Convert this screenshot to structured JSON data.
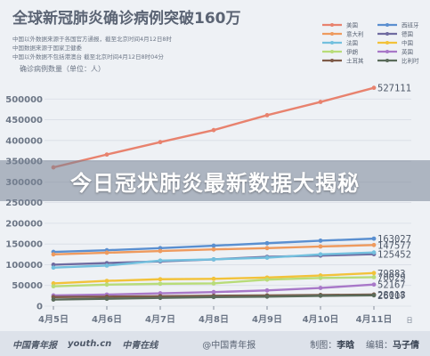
{
  "title": "全球新冠肺炎确诊病例突破160万",
  "notes": [
    "中国以外数据来源于各国官方通报，截至北京时间4月12日8时",
    "中国数据来源于国家卫健委",
    "中国以外数据不包括港澳台 截至北京时间4月12日8时04分"
  ],
  "banner": "今日冠状肺炎最新数据大揭秘",
  "footer": {
    "logo1": "中国青年报",
    "logo2": "youth.cn",
    "logo3": "中青在线",
    "source": "@中国青年报",
    "credits_label1": "制图：",
    "credits_name1": "李晗",
    "credits_label2": "编辑：",
    "credits_name2": "马子倩"
  },
  "colors": {
    "background": "#eef1f5",
    "grid": "#d8dde5",
    "axis_text": "#6b7585"
  },
  "chart_data": {
    "type": "line",
    "ylabel": "确诊病例数量（单位：人）",
    "xlabel": "日",
    "x": [
      "4月5日",
      "4月6日",
      "4月7日",
      "4月8日",
      "4月9日",
      "4月10日",
      "4月11日"
    ],
    "ylim": [
      0,
      550000
    ],
    "yticks": [
      0,
      50000,
      100000,
      150000,
      200000,
      250000,
      300000,
      350000,
      400000,
      450000,
      500000
    ],
    "legend_position": "top-right",
    "series": [
      {
        "name": "美国",
        "color": "#e8826e",
        "values": [
          335000,
          366000,
          396000,
          425000,
          461000,
          493000,
          527111
        ]
      },
      {
        "name": "西班牙",
        "color": "#5a8fd0",
        "values": [
          131000,
          135000,
          140000,
          146000,
          152000,
          158000,
          163027
        ]
      },
      {
        "name": "意大利",
        "color": "#ee9a5e",
        "values": [
          125000,
          129000,
          133000,
          137000,
          140000,
          144000,
          147577
        ]
      },
      {
        "name": "德国",
        "color": "#6f6ba0",
        "values": [
          100000,
          104000,
          108000,
          113000,
          119000,
          122000,
          125452
        ]
      },
      {
        "name": "法国",
        "color": "#73c0de",
        "values": [
          93000,
          98000,
          110000,
          113000,
          117000,
          125000,
          129654
        ]
      },
      {
        "name": "中国",
        "color": "#f2c23a",
        "values": [
          55000,
          61000,
          65000,
          66000,
          69000,
          74000,
          79883
        ]
      },
      {
        "name": "伊朗",
        "color": "#b8dc78",
        "values": [
          48000,
          52000,
          54000,
          55000,
          64000,
          68000,
          70029
        ]
      },
      {
        "name": "英国",
        "color": "#a878c8",
        "values": [
          26000,
          28000,
          31000,
          34000,
          38000,
          44000,
          52167
        ]
      },
      {
        "name": "土耳其",
        "color": "#7e5a48",
        "values": [
          22000,
          23000,
          24000,
          25000,
          26000,
          27000,
          28018
        ]
      },
      {
        "name": "比利时",
        "color": "#5a6b5a",
        "values": [
          16000,
          18000,
          20000,
          22000,
          23000,
          25000,
          26107
        ]
      }
    ],
    "end_labels": [
      {
        "series": "美国",
        "text": "527111"
      },
      {
        "series": "西班牙",
        "text": "163027"
      },
      {
        "series": "意大利",
        "text": "147577"
      },
      {
        "series": "德国",
        "text": "125452"
      },
      {
        "series": "中国",
        "text": "79883"
      },
      {
        "series": "伊朗",
        "text": "70029"
      },
      {
        "series": "英国",
        "text": "52167"
      },
      {
        "series": "土耳其",
        "text": "28018"
      },
      {
        "series": "比利时",
        "text": "26107"
      }
    ]
  }
}
